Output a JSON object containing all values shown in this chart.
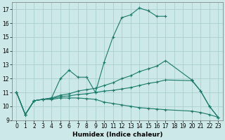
{
  "xlabel": "Humidex (Indice chaleur)",
  "xlim": [
    -0.5,
    23.5
  ],
  "ylim": [
    9,
    17.5
  ],
  "yticks": [
    9,
    10,
    11,
    12,
    13,
    14,
    15,
    16,
    17
  ],
  "xticks": [
    0,
    1,
    2,
    3,
    4,
    5,
    6,
    7,
    8,
    9,
    10,
    11,
    12,
    13,
    14,
    15,
    16,
    17,
    18,
    19,
    20,
    21,
    22,
    23
  ],
  "background_color": "#cce8e8",
  "grid_color": "#aacfcf",
  "line_color": "#1a7a6a",
  "line1_x": [
    0,
    1,
    2,
    3,
    4,
    5,
    6,
    7,
    8,
    9,
    10,
    11,
    12,
    13,
    14,
    15,
    16,
    17
  ],
  "line1_y": [
    11.0,
    9.4,
    10.4,
    10.5,
    10.6,
    12.0,
    12.6,
    12.1,
    12.1,
    11.0,
    13.2,
    15.0,
    16.4,
    16.6,
    17.1,
    16.9,
    16.5,
    16.5
  ],
  "line2_x": [
    0,
    1,
    2,
    3,
    4,
    5,
    6,
    7,
    8,
    9,
    10,
    11,
    12,
    13,
    14,
    15,
    16,
    17,
    20,
    21,
    22,
    23
  ],
  "line2_y": [
    11.0,
    9.4,
    10.4,
    10.5,
    10.6,
    10.8,
    10.9,
    11.1,
    11.2,
    11.3,
    11.5,
    11.7,
    12.0,
    12.2,
    12.5,
    12.7,
    12.9,
    13.3,
    11.9,
    11.1,
    10.0,
    9.2
  ],
  "line3_x": [
    0,
    1,
    2,
    3,
    4,
    5,
    6,
    7,
    8,
    9,
    10,
    11,
    12,
    13,
    14,
    15,
    16,
    17,
    20,
    21,
    22,
    23
  ],
  "line3_y": [
    11.0,
    9.4,
    10.4,
    10.5,
    10.55,
    10.7,
    10.75,
    10.85,
    10.9,
    11.0,
    11.1,
    11.15,
    11.25,
    11.35,
    11.5,
    11.65,
    11.75,
    11.9,
    11.85,
    11.1,
    10.0,
    9.2
  ],
  "line4_x": [
    0,
    1,
    2,
    3,
    4,
    5,
    6,
    7,
    8,
    9,
    10,
    11,
    12,
    13,
    14,
    15,
    16,
    17,
    20,
    21,
    22,
    23
  ],
  "line4_y": [
    11.0,
    9.4,
    10.4,
    10.5,
    10.5,
    10.6,
    10.6,
    10.6,
    10.55,
    10.5,
    10.3,
    10.2,
    10.1,
    10.0,
    9.9,
    9.85,
    9.8,
    9.75,
    9.65,
    9.55,
    9.4,
    9.2
  ]
}
